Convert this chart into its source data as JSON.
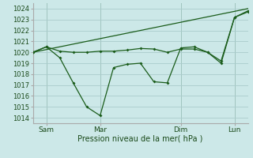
{
  "background_color": "#cce8e8",
  "grid_color": "#aacccc",
  "line_color": "#1a5c1a",
  "xlabel_text": "Pression niveau de la mer( hPa )",
  "ylim": [
    1013.5,
    1024.5
  ],
  "yticks": [
    1014,
    1015,
    1016,
    1017,
    1018,
    1019,
    1020,
    1021,
    1022,
    1023,
    1024
  ],
  "xlim": [
    0,
    32
  ],
  "vline_positions": [
    2,
    10,
    22,
    30
  ],
  "xtick_positions": [
    2,
    10,
    22,
    30
  ],
  "xtick_labels": [
    "Sam",
    "Mar",
    "Dim",
    "Lun"
  ],
  "series_flat": {
    "x": [
      0,
      2,
      4,
      6,
      8,
      10,
      12,
      14,
      16,
      18,
      20,
      22,
      24,
      26,
      28,
      30,
      32
    ],
    "y": [
      1020.0,
      1020.5,
      1020.1,
      1020.0,
      1020.0,
      1020.1,
      1020.1,
      1020.2,
      1020.35,
      1020.3,
      1020.0,
      1020.3,
      1020.3,
      1020.0,
      1019.0,
      1023.2,
      1023.7
    ]
  },
  "series_wavy": {
    "x": [
      0,
      2,
      4,
      6,
      8,
      10,
      12,
      14,
      16,
      18,
      20,
      22,
      24,
      26,
      28,
      30,
      32
    ],
    "y": [
      1020.0,
      1020.5,
      1019.5,
      1017.2,
      1015.0,
      1014.2,
      1018.6,
      1018.9,
      1019.0,
      1017.3,
      1017.2,
      1020.4,
      1020.5,
      1020.0,
      1019.2,
      1023.2,
      1023.8
    ]
  },
  "series_trend": {
    "x": [
      0,
      32
    ],
    "y": [
      1020.0,
      1024.0
    ]
  }
}
